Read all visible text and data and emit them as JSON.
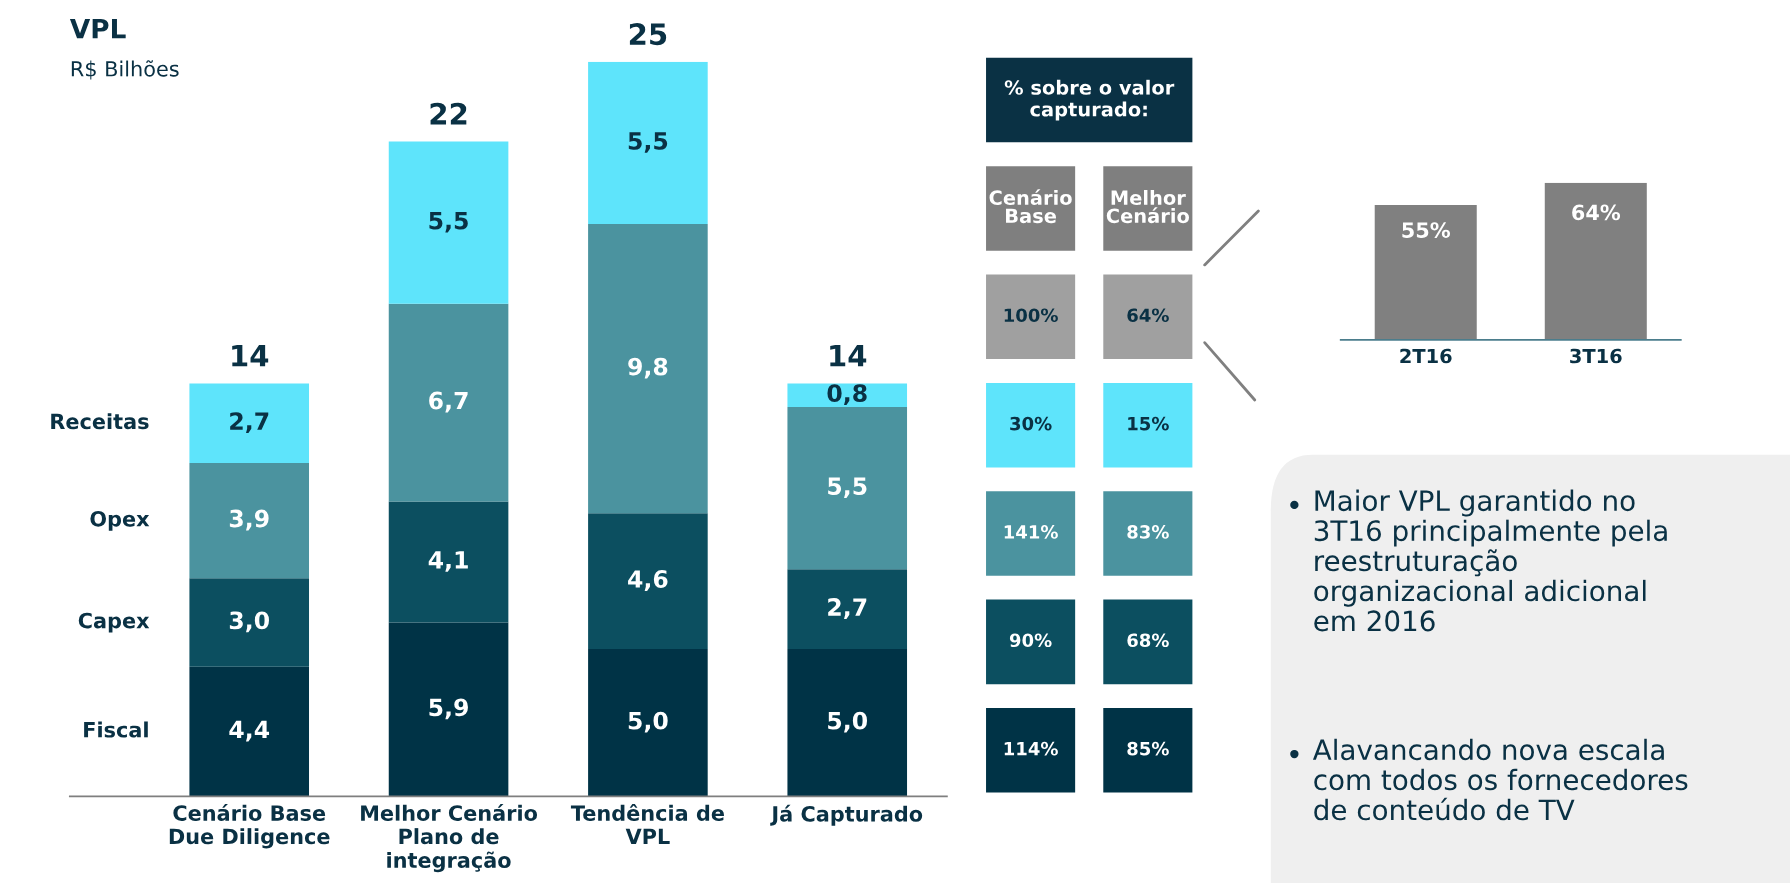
{
  "chart_data": [
    {
      "type": "bar",
      "title": "VPL",
      "subtitle": "R$ Bilhões",
      "stacked": true,
      "categories": [
        "Cenário Base\nDue Diligence",
        "Melhor Cenário\nPlano de\nintegração",
        "Tendência de\nVPL",
        "Já Capturado"
      ],
      "series": [
        {
          "name": "Fiscal",
          "color": "#003346",
          "values": [
            4.4,
            5.9,
            5.0,
            5.0
          ],
          "value_labels": [
            "4,4",
            "5,9",
            "5,0",
            "5,0"
          ]
        },
        {
          "name": "Capex",
          "color": "#0c4f60",
          "values": [
            3.0,
            4.1,
            4.6,
            2.7
          ],
          "value_labels": [
            "3,0",
            "4,1",
            "4,6",
            "2,7"
          ]
        },
        {
          "name": "Opex",
          "color": "#4b939f",
          "values": [
            3.9,
            6.7,
            9.8,
            5.5
          ],
          "value_labels": [
            "3,9",
            "6,7",
            "9,8",
            "5,5"
          ]
        },
        {
          "name": "Receitas",
          "color": "#5ee4fb",
          "values": [
            2.7,
            5.5,
            5.5,
            0.8
          ],
          "value_labels": [
            "2,7",
            "5,5",
            "5,5",
            "0,8"
          ]
        }
      ],
      "totals": [
        "14",
        "22",
        "25",
        "14"
      ]
    },
    {
      "type": "other",
      "title": "% sobre o valor\ncapturado:",
      "categories": [
        "Cenário\nBase",
        "Melhor\nCenário"
      ],
      "series": [
        {
          "color": "#a0a0a0",
          "values": [
            100,
            64
          ],
          "value_labels": [
            "100%",
            "64%"
          ]
        },
        {
          "color": "#5ee4fb",
          "values": [
            30,
            15
          ],
          "value_labels": [
            "30%",
            "15%"
          ]
        },
        {
          "color": "#4b939f",
          "values": [
            141,
            83
          ],
          "value_labels": [
            "141%",
            "83%"
          ]
        },
        {
          "color": "#0c4f60",
          "values": [
            90,
            68
          ],
          "value_labels": [
            "90%",
            "68%"
          ]
        },
        {
          "color": "#003346",
          "values": [
            114,
            85
          ],
          "value_labels": [
            "114%",
            "85%"
          ]
        }
      ]
    },
    {
      "type": "bar",
      "categories": [
        "2T16",
        "3T16"
      ],
      "values": [
        55,
        64
      ],
      "value_labels": [
        "55%",
        "64%"
      ],
      "color": "#808080"
    },
    {
      "type": "other",
      "annotations": [
        "Maior VPL garantido no\n3T16 principalmente pela\nreestruturação\norganizacional adicional\nem 2016",
        "Alavancando nova escala\ncom todos os fornecedores\nde conteúdo de TV"
      ]
    }
  ]
}
